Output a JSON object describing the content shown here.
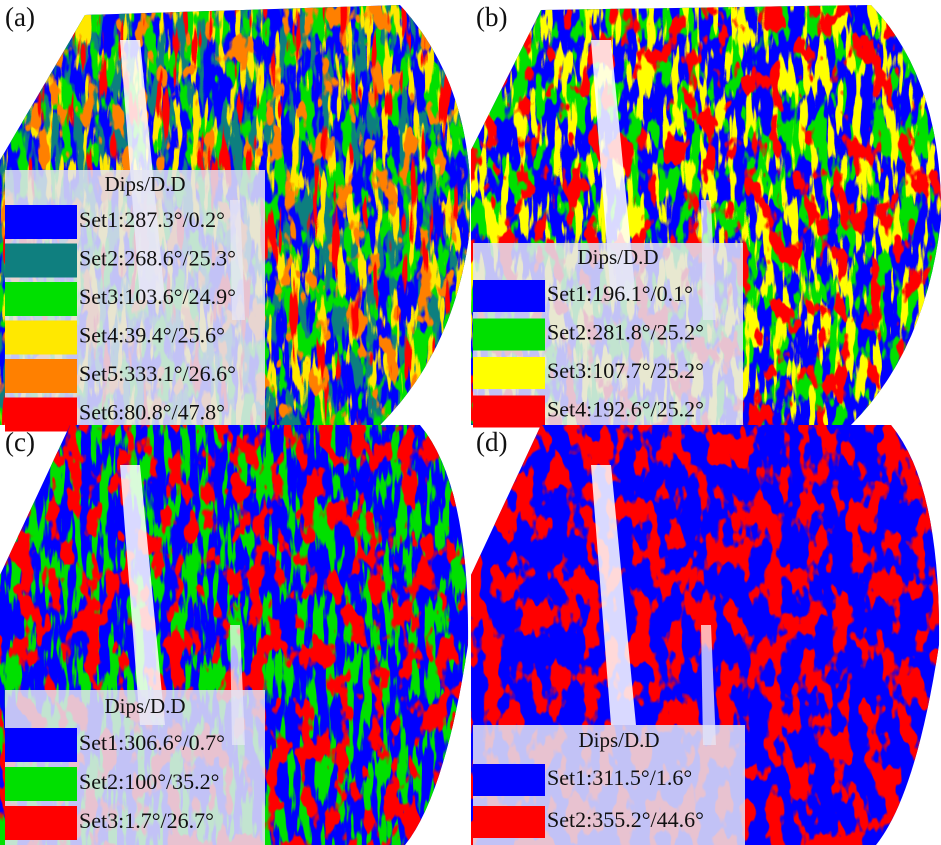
{
  "panels": [
    {
      "label": "(a)",
      "legend": {
        "title": "Dips/D.D",
        "sets": [
          {
            "label": "Set1:287.3°/0.2°",
            "color": "#0000ff"
          },
          {
            "label": "Set2:268.6°/25.3°",
            "color": "#0f7f7f"
          },
          {
            "label": "Set3:103.6°/24.9°",
            "color": "#00e000"
          },
          {
            "label": "Set4:39.4°/25.6°",
            "color": "#ffe800"
          },
          {
            "label": "Set5:333.1°/26.6°",
            "color": "#ff8000"
          },
          {
            "label": "Set6:80.8°/47.8°",
            "color": "#ff0000"
          }
        ]
      }
    },
    {
      "label": "(b)",
      "legend": {
        "title": "Dips/D.D",
        "sets": [
          {
            "label": "Set1:196.1°/0.1°",
            "color": "#0000ff"
          },
          {
            "label": "Set2:281.8°/25.2°",
            "color": "#00e000"
          },
          {
            "label": "Set3:107.7°/25.2°",
            "color": "#ffff00"
          },
          {
            "label": "Set4:192.6°/25.2°",
            "color": "#ff0000"
          }
        ]
      }
    },
    {
      "label": "(c)",
      "legend": {
        "title": "Dips/D.D",
        "sets": [
          {
            "label": "Set1:306.6°/0.7°",
            "color": "#0000ff"
          },
          {
            "label": "Set2:100°/35.2°",
            "color": "#00e000"
          },
          {
            "label": "Set3:1.7°/26.7°",
            "color": "#ff0000"
          }
        ]
      }
    },
    {
      "label": "(d)",
      "legend": {
        "title": "Dips/D.D",
        "sets": [
          {
            "label": "Set1:311.5°/1.6°",
            "color": "#0000ff"
          },
          {
            "label": "Set2:355.2°/44.6°",
            "color": "#ff0000"
          }
        ]
      }
    }
  ]
}
